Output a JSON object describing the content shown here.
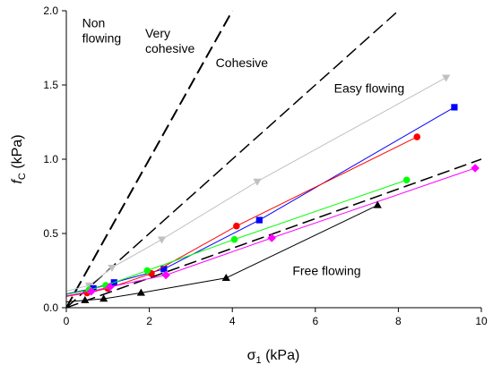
{
  "chart_data": {
    "type": "scatter",
    "xlabel": "σ1 (kPa)",
    "ylabel": "fc (kPa)",
    "xlim": [
      0,
      10
    ],
    "ylim": [
      0,
      2.0
    ],
    "xticks": [
      "0",
      "2",
      "4",
      "6",
      "8",
      "10"
    ],
    "xtick_values": [
      0,
      2,
      4,
      6,
      8,
      10
    ],
    "yticks": [
      "0.0",
      "0.5",
      "1.0",
      "1.5",
      "2.0"
    ],
    "ytick_values": [
      0,
      0.5,
      1.0,
      1.5,
      2.0
    ],
    "grid": false,
    "boundaries": [
      {
        "ff_c": 1,
        "x": [
          0,
          10
        ],
        "y": [
          0,
          1.0
        ],
        "color": "#000000",
        "dash": "long",
        "width": 1.5
      },
      {
        "ff_c": 2,
        "x": [
          0,
          4
        ],
        "y": [
          0,
          2.0
        ],
        "color": "#000000",
        "dash": "long",
        "width": 2
      },
      {
        "ff_c": 4,
        "x": [
          0,
          8
        ],
        "y": [
          0,
          2.0
        ],
        "color": "#000000",
        "dash": "long",
        "width": 1.5
      },
      {
        "ff_c": 10,
        "x": [
          0,
          20
        ],
        "y": [
          0,
          2.0
        ],
        "color": "#000000",
        "dash": "long",
        "width": 1
      }
    ],
    "regions": [
      {
        "lines": [
          "Non",
          "flowing"
        ],
        "x": 0.38,
        "y": 1.89
      },
      {
        "lines": [
          "Very",
          "cohesive"
        ],
        "x": 1.9,
        "y": 1.82
      },
      {
        "lines": [
          "Cohesive"
        ],
        "x": 3.6,
        "y": 1.62
      },
      {
        "lines": [
          "Easy flowing"
        ],
        "x": 6.45,
        "y": 1.45
      },
      {
        "lines": [
          "Free flowing"
        ],
        "x": 5.45,
        "y": 0.22
      }
    ],
    "series": [
      {
        "marker": "triangle-down",
        "color": "#c0c0c0",
        "x": [
          0.55,
          1.1,
          2.3,
          4.6,
          9.15
        ],
        "y": [
          0.15,
          0.27,
          0.46,
          0.85,
          1.55
        ]
      },
      {
        "marker": "square",
        "color": "#0000ff",
        "x": [
          0.65,
          1.15,
          2.35,
          4.65,
          9.35
        ],
        "y": [
          0.13,
          0.17,
          0.26,
          0.59,
          1.35
        ]
      },
      {
        "marker": "circle",
        "color": "#ff0000",
        "x": [
          0.5,
          1.0,
          2.05,
          4.1,
          8.45
        ],
        "y": [
          0.1,
          0.13,
          0.23,
          0.55,
          1.15
        ]
      },
      {
        "marker": "circle",
        "color": "#00ff00",
        "x": [
          0.55,
          0.95,
          1.95,
          4.05,
          8.2
        ],
        "y": [
          0.12,
          0.15,
          0.25,
          0.46,
          0.86
        ]
      },
      {
        "marker": "diamond",
        "color": "#ff00ff",
        "x": [
          0.6,
          1.05,
          2.4,
          4.95,
          9.85
        ],
        "y": [
          0.11,
          0.14,
          0.22,
          0.47,
          0.94
        ]
      },
      {
        "marker": "triangle-up",
        "color": "#000000",
        "x": [
          0.45,
          0.9,
          1.8,
          3.85,
          7.5
        ],
        "y": [
          0.05,
          0.06,
          0.1,
          0.2,
          0.69
        ]
      }
    ]
  }
}
